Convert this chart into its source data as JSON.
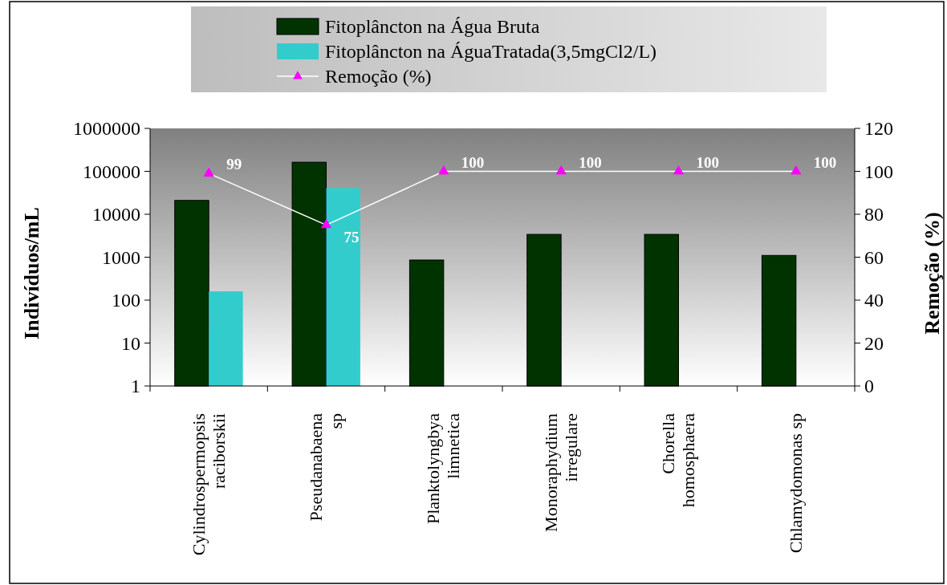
{
  "chart_data": {
    "type": "bar",
    "categories": [
      "Cylindrospermopsis\nraciborskii",
      "Pseudanabaena\nsp",
      "Planktolyngbya\nlimnetica",
      "Monoraphydium\nirregulare",
      "Chorella\nhomosphaera",
      "Chlamydomonas sp"
    ],
    "series": [
      {
        "name": "Fitoplâncton na Água Bruta",
        "color": "#003300",
        "values": [
          21000,
          163000,
          860,
          3400,
          3400,
          1100
        ]
      },
      {
        "name": "Fitoplâncton na ÁguaTratada(3,5mgCl2/L)",
        "color": "#33cccc",
        "values": [
          160,
          41000,
          null,
          null,
          null,
          null
        ]
      },
      {
        "name": "Remoção (%)",
        "type": "line",
        "axis": "y2",
        "color": "#ffffff",
        "marker": "triangle",
        "data_labels": true,
        "values": [
          99,
          75,
          100,
          100,
          100,
          100
        ]
      }
    ],
    "log": "y",
    "ylim": [
      1,
      1000000
    ],
    "yticks": [
      1,
      10,
      100,
      1000,
      10000,
      100000,
      1000000
    ],
    "y2lim": [
      0,
      120
    ],
    "y2ticks": [
      0,
      20,
      40,
      60,
      80,
      100,
      120
    ],
    "ylabel": "Indivíduos/mL",
    "y2label": "Remoção (%)",
    "legend": "top",
    "grid": false
  }
}
